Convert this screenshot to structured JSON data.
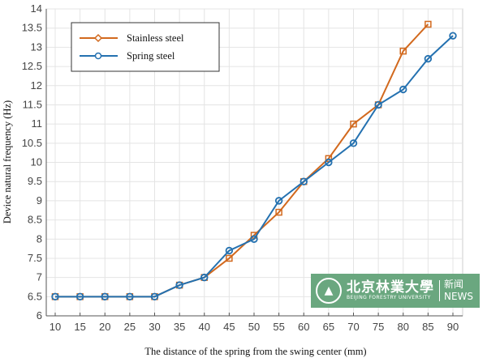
{
  "chart_data": {
    "type": "line",
    "xlabel": "The distance of the spring from the swing center (mm)",
    "ylabel": "Device natural frequency (Hz)",
    "xlim": [
      10,
      90
    ],
    "ylim": [
      6,
      14
    ],
    "xticks": [
      10,
      15,
      20,
      25,
      30,
      35,
      40,
      45,
      50,
      55,
      60,
      65,
      70,
      75,
      80,
      85,
      90
    ],
    "yticks": [
      6,
      6.5,
      7,
      7.5,
      8,
      8.5,
      9,
      9.5,
      10,
      10.5,
      11,
      11.5,
      12,
      12.5,
      13,
      13.5,
      14
    ],
    "grid": true,
    "legend_position": "top-left",
    "series": [
      {
        "name": "Stainless steel",
        "color": "#d2691e",
        "marker": "square",
        "x": [
          10,
          15,
          20,
          25,
          30,
          35,
          40,
          45,
          50,
          55,
          60,
          65,
          70,
          75,
          80,
          85
        ],
        "y": [
          6.5,
          6.5,
          6.5,
          6.5,
          6.5,
          6.8,
          7.0,
          7.5,
          8.1,
          8.7,
          9.5,
          10.1,
          11.0,
          11.5,
          12.9,
          13.6
        ]
      },
      {
        "name": "Spring steel",
        "color": "#2471b0",
        "marker": "circle",
        "x": [
          10,
          15,
          20,
          25,
          30,
          35,
          40,
          45,
          50,
          55,
          60,
          65,
          70,
          75,
          80,
          85,
          90
        ],
        "y": [
          6.5,
          6.5,
          6.5,
          6.5,
          6.5,
          6.8,
          7.0,
          7.7,
          8.0,
          9.0,
          9.5,
          10.0,
          10.5,
          11.5,
          11.9,
          12.7,
          13.3
        ]
      }
    ]
  },
  "watermark": {
    "cn": "北京林業大學",
    "en": "BEIJING FORESTRY UNIVERSITY",
    "news_cn": "新闻",
    "news_en": "NEWS"
  }
}
